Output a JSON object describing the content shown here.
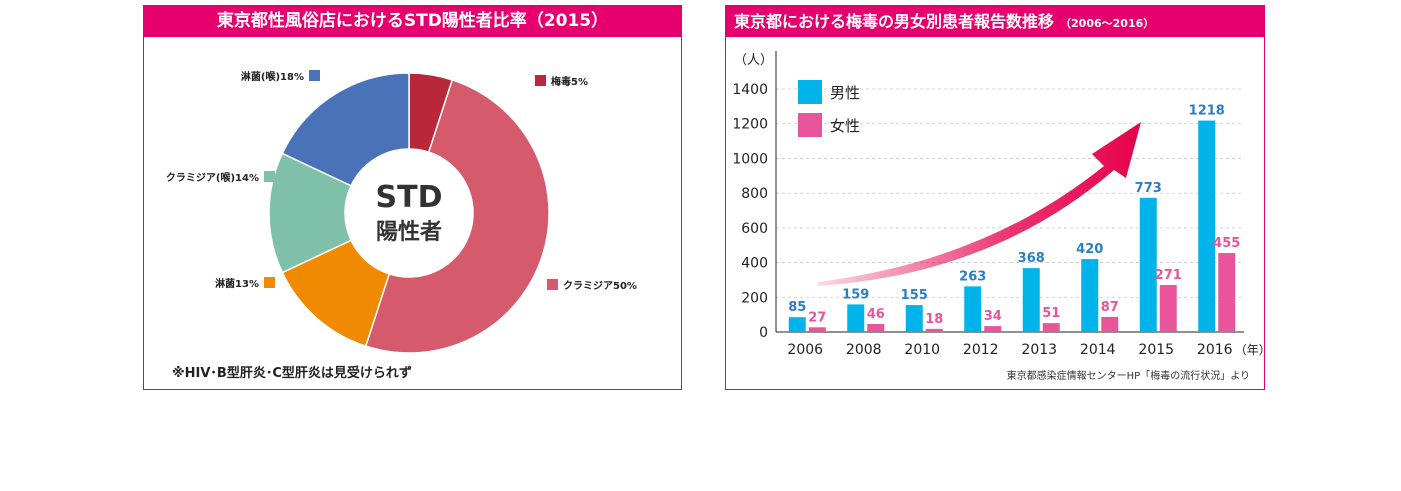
{
  "chart_data": [
    {
      "type": "pie",
      "title": "東京都性風俗店におけるSTD陽性者比率（2015）",
      "center_label": [
        "STD",
        "陽性者"
      ],
      "slices": [
        {
          "label": "梅毒5%",
          "value": 5,
          "color": "#b8283a"
        },
        {
          "label": "クラミジア50%",
          "value": 50,
          "color": "#d45a6c"
        },
        {
          "label": "淋菌13%",
          "value": 13,
          "color": "#f08a00"
        },
        {
          "label": "クラミジア(喉)14%",
          "value": 14,
          "color": "#7fc0aa"
        },
        {
          "label": "淋菌(喉)18%",
          "value": 18,
          "color": "#4a72b8"
        }
      ],
      "note": "※HIV･B型肝炎･C型肝炎は見受けられず"
    },
    {
      "type": "bar",
      "title": "東京都における梅毒の男女別患者報告数推移",
      "subtitle": "（2006～2016）",
      "y_unit": "（人）",
      "x_unit": "（年）",
      "categories": [
        "2006",
        "2008",
        "2010",
        "2012",
        "2013",
        "2014",
        "2015",
        "2016"
      ],
      "ylim": [
        0,
        1400
      ],
      "yticks": [
        0,
        200,
        400,
        600,
        800,
        1000,
        1200,
        1400
      ],
      "grid": true,
      "legend_position": "top-left",
      "series": [
        {
          "name": "男性",
          "color": "#00b4ea",
          "label_color": "#2a7fc4",
          "values": [
            85,
            159,
            155,
            263,
            368,
            420,
            773,
            1218
          ]
        },
        {
          "name": "女性",
          "color": "#e8559a",
          "label_color": "#e8559a",
          "values": [
            27,
            46,
            18,
            34,
            51,
            87,
            271,
            455
          ]
        }
      ],
      "source": "東京都感染症情報センターHP「梅毒の流行状況」より"
    }
  ]
}
